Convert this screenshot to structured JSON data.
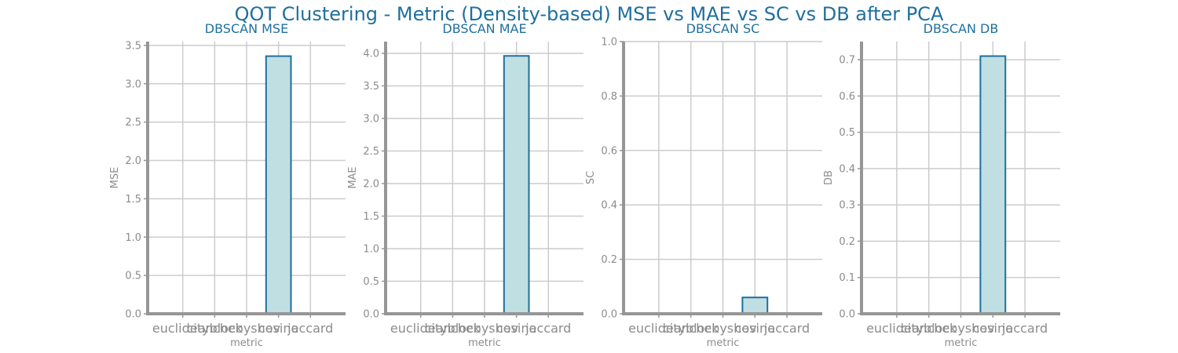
{
  "title": "QOT Clustering - Metric (Density-based) MSE vs MAE vs SC vs DB after PCA",
  "colors": {
    "title": "#1f6f9f",
    "bar_fill": "#bfdfe3",
    "bar_edge": "#1f6f9f",
    "axis": "#969696",
    "grid": "#cccccc",
    "text": "#8c8c8c"
  },
  "chart_data": [
    {
      "type": "bar",
      "title": "DBSCAN MSE",
      "xlabel": "metric",
      "ylabel": "MSE",
      "categories": [
        "euclidean",
        "cityblock",
        "chebyshev",
        "cosine",
        "jaccard"
      ],
      "values": [
        0,
        0,
        0,
        3.36,
        0
      ],
      "ylim": [
        0,
        3.55
      ],
      "yticks": [
        0.0,
        0.5,
        1.0,
        1.5,
        2.0,
        2.5,
        3.0,
        3.5
      ],
      "grid": true
    },
    {
      "type": "bar",
      "title": "DBSCAN MAE",
      "xlabel": "metric",
      "ylabel": "MAE",
      "categories": [
        "euclidean",
        "cityblock",
        "chebyshev",
        "cosine",
        "jaccard"
      ],
      "values": [
        0,
        0,
        0,
        3.96,
        0
      ],
      "ylim": [
        0,
        4.18
      ],
      "yticks": [
        0.0,
        0.5,
        1.0,
        1.5,
        2.0,
        2.5,
        3.0,
        3.5,
        4.0
      ],
      "grid": true
    },
    {
      "type": "bar",
      "title": "DBSCAN SC",
      "xlabel": "metric",
      "ylabel": "SC",
      "categories": [
        "euclidean",
        "cityblock",
        "chebyshev",
        "cosine",
        "jaccard"
      ],
      "values": [
        0,
        0,
        0,
        0.06,
        0
      ],
      "ylim": [
        0,
        1.0
      ],
      "yticks": [
        0.0,
        0.2,
        0.4,
        0.6,
        0.8,
        1.0
      ],
      "grid": true
    },
    {
      "type": "bar",
      "title": "DBSCAN DB",
      "xlabel": "metric",
      "ylabel": "DB",
      "categories": [
        "euclidean",
        "cityblock",
        "chebyshev",
        "cosine",
        "jaccard"
      ],
      "values": [
        0,
        0,
        0,
        0.71,
        0
      ],
      "ylim": [
        0,
        0.75
      ],
      "yticks": [
        0.0,
        0.1,
        0.2,
        0.3,
        0.4,
        0.5,
        0.6,
        0.7
      ],
      "grid": true
    }
  ]
}
